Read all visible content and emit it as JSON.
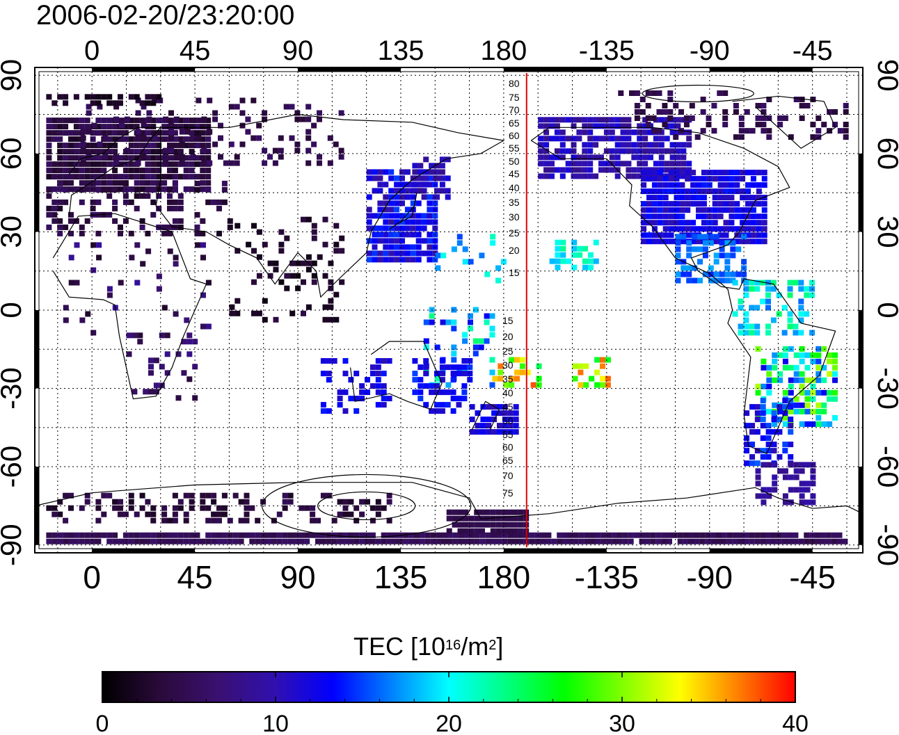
{
  "title": "2006-02-20/23:20:00",
  "map": {
    "lon_ticks": [
      "0",
      "45",
      "90",
      "135",
      "180",
      "-135",
      "-90",
      "-45"
    ],
    "lon_tick_values": [
      0,
      45,
      90,
      135,
      180,
      225,
      270,
      315
    ],
    "lat_ticks": [
      "90",
      "60",
      "30",
      "0",
      "-30",
      "-60",
      "-90"
    ],
    "lat_tick_values": [
      90,
      60,
      30,
      0,
      -30,
      -60,
      -90
    ],
    "lon_range": [
      -25,
      337
    ],
    "lat_range": [
      -93,
      93
    ],
    "terminator_lon": 190,
    "terminator_color": "#e00000",
    "upper_labels": [
      "80",
      "75",
      "70",
      "65",
      "60",
      "55",
      "50",
      "45",
      "40",
      "35",
      "30",
      "25",
      "20",
      "15"
    ],
    "lower_labels": [
      "15",
      "20",
      "25",
      "30",
      "35",
      "40",
      "45",
      "50",
      "55",
      "60",
      "65",
      "70",
      "75"
    ]
  },
  "colorbar": {
    "title_main": "TEC  [10",
    "title_exp": "16",
    "title_mid": "/m",
    "title_exp2": "2",
    "title_end": "]",
    "ticks": [
      "0",
      "10",
      "20",
      "30",
      "40"
    ],
    "tick_values": [
      0,
      10,
      20,
      30,
      40
    ],
    "range": [
      0,
      40
    ],
    "colors": [
      "#000000",
      "#2a0a3a",
      "#3a1070",
      "#3010b0",
      "#0000ff",
      "#0080ff",
      "#00ffff",
      "#00ff80",
      "#00ff00",
      "#80ff00",
      "#ffff00",
      "#ff8000",
      "#ff0000"
    ]
  }
}
